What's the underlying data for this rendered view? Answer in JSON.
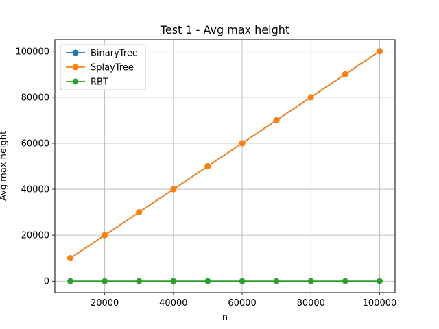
{
  "chart_data": {
    "type": "line",
    "title": "Test 1 - Avg max height",
    "xlabel": "n",
    "ylabel": "Avg max height",
    "x": [
      10000,
      20000,
      30000,
      40000,
      50000,
      60000,
      70000,
      80000,
      90000,
      100000
    ],
    "xlim": [
      5500,
      104500
    ],
    "ylim": [
      -5000,
      105000
    ],
    "xticks": [
      20000,
      40000,
      60000,
      80000,
      100000
    ],
    "yticks": [
      0,
      20000,
      40000,
      60000,
      80000,
      100000
    ],
    "xtick_labels": [
      "20000",
      "40000",
      "60000",
      "80000",
      "100000"
    ],
    "ytick_labels": [
      "0",
      "20000",
      "40000",
      "60000",
      "80000",
      "100000"
    ],
    "grid": true,
    "legend_position": "upper-left",
    "series": [
      {
        "name": "BinaryTree",
        "color": "#1f77b4",
        "marker": "circle",
        "values": [
          10000,
          20000,
          30000,
          40000,
          50000,
          60000,
          70000,
          80000,
          90000,
          100000
        ]
      },
      {
        "name": "SplayTree",
        "color": "#ff7f0e",
        "marker": "circle",
        "values": [
          10000,
          20000,
          30000,
          40000,
          50000,
          60000,
          70000,
          80000,
          90000,
          100000
        ]
      },
      {
        "name": "RBT",
        "color": "#2ca02c",
        "marker": "circle",
        "values": [
          24,
          26,
          28,
          28,
          30,
          30,
          31,
          31,
          32,
          32
        ]
      }
    ]
  }
}
